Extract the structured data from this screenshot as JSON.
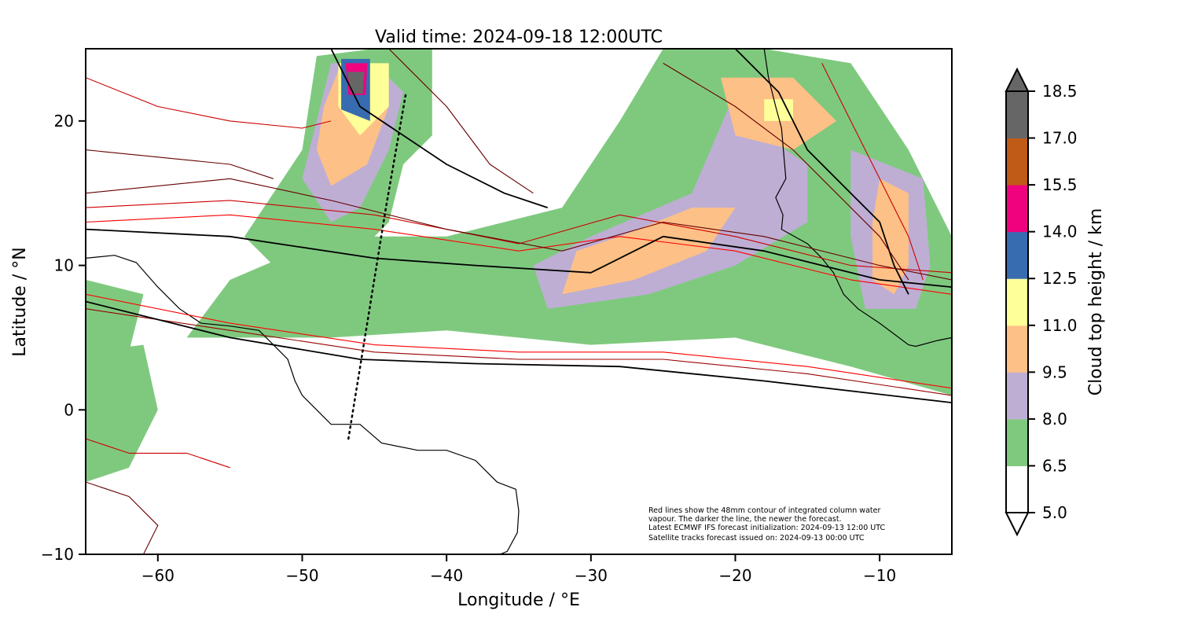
{
  "figure": {
    "title": "Valid time: 2024-09-18 12:00UTC",
    "xlabel": "Longitude / °E",
    "ylabel": "Latitude / °N",
    "xticks": [
      "−60",
      "−50",
      "−40",
      "−30",
      "−20",
      "−10"
    ],
    "yticks": [
      "20",
      "10",
      "0",
      "−10"
    ],
    "note_lines": [
      "Red lines show the 48mm contour of integrated column water",
      "vapour. The darker the line, the newer the forecast.",
      "Latest ECMWF IFS forecast initialization: 2024-09-13 12:00 UTC",
      "Satellite tracks forecast issued on: 2024-09-13 00:00 UTC"
    ]
  },
  "colorbar": {
    "label": "Cloud top height / km",
    "tick_labels": [
      "18.5",
      "17.0",
      "15.5",
      "14.0",
      "12.5",
      "11.0",
      "9.5",
      "8.0",
      "6.5",
      "5.0"
    ],
    "bins": [
      {
        "from": 5.0,
        "to": 6.5,
        "color": "#ffffff"
      },
      {
        "from": 6.5,
        "to": 8.0,
        "color": "#7fc97f"
      },
      {
        "from": 8.0,
        "to": 9.5,
        "color": "#beaed4"
      },
      {
        "from": 9.5,
        "to": 11.0,
        "color": "#fdc086"
      },
      {
        "from": 11.0,
        "to": 12.5,
        "color": "#ffff99"
      },
      {
        "from": 12.5,
        "to": 14.0,
        "color": "#386cb0"
      },
      {
        "from": 14.0,
        "to": 15.5,
        "color": "#f0027f"
      },
      {
        "from": 15.5,
        "to": 17.0,
        "color": "#bf5b17"
      },
      {
        "from": 17.0,
        "to": 18.5,
        "color": "#666666"
      }
    ],
    "extend": "both"
  },
  "chart_data": {
    "type": "map",
    "xlim": [
      -65,
      -5
    ],
    "ylim": [
      -10,
      25
    ],
    "satellite_track": [
      [
        -46.8,
        -2
      ],
      [
        -45.5,
        6
      ],
      [
        -44.2,
        14
      ],
      [
        -42.8,
        22
      ]
    ],
    "cloud_regions": [
      {
        "level": 6.5,
        "points": [
          [
            -49,
            24.5
          ],
          [
            -45,
            25
          ],
          [
            -41,
            25
          ],
          [
            -41,
            19
          ],
          [
            -43,
            17
          ],
          [
            -44,
            13
          ],
          [
            -47,
            10
          ],
          [
            -51,
            9
          ],
          [
            -54,
            12
          ],
          [
            -52,
            15
          ],
          [
            -50,
            18
          ]
        ]
      },
      {
        "level": 8.0,
        "points": [
          [
            -48,
            24
          ],
          [
            -45,
            24
          ],
          [
            -43,
            22
          ],
          [
            -44,
            18
          ],
          [
            -46,
            14
          ],
          [
            -48,
            13
          ],
          [
            -50,
            16
          ],
          [
            -49,
            20
          ]
        ]
      },
      {
        "level": 9.5,
        "points": [
          [
            -47.5,
            23.5
          ],
          [
            -45,
            23.5
          ],
          [
            -44,
            21
          ],
          [
            -45.5,
            17
          ],
          [
            -48,
            15.5
          ],
          [
            -49,
            18
          ],
          [
            -48.5,
            21
          ]
        ]
      },
      {
        "level": 11.0,
        "points": [
          [
            -47.5,
            24
          ],
          [
            -44,
            24
          ],
          [
            -44,
            21
          ],
          [
            -46,
            19
          ],
          [
            -47.5,
            21
          ]
        ]
      },
      {
        "level": 12.5,
        "points": [
          [
            -47.3,
            24.3
          ],
          [
            -45.3,
            24.3
          ],
          [
            -45.3,
            20
          ],
          [
            -47.3,
            20.8
          ]
        ]
      },
      {
        "level": 14.0,
        "points": [
          [
            -47,
            24
          ],
          [
            -45.5,
            24
          ],
          [
            -45.6,
            21.8
          ],
          [
            -46.8,
            21.8
          ]
        ]
      },
      {
        "level": 17.0,
        "points": [
          [
            -46.9,
            23.4
          ],
          [
            -45.7,
            23.4
          ],
          [
            -45.8,
            21.9
          ],
          [
            -46.6,
            21.9
          ]
        ]
      },
      {
        "level": 6.5,
        "points": [
          [
            -58,
            5
          ],
          [
            -48,
            5
          ],
          [
            -40,
            5.5
          ],
          [
            -30,
            4.5
          ],
          [
            -20,
            5
          ],
          [
            -12,
            3
          ],
          [
            -5,
            1
          ],
          [
            -5,
            12
          ],
          [
            -8,
            18
          ],
          [
            -12,
            24
          ],
          [
            -18,
            25
          ],
          [
            -25,
            25
          ],
          [
            -28,
            20
          ],
          [
            -32,
            14
          ],
          [
            -40,
            12
          ],
          [
            -48,
            12
          ],
          [
            -55,
            9
          ]
        ]
      },
      {
        "level": 8.0,
        "points": [
          [
            -33,
            7
          ],
          [
            -26,
            8
          ],
          [
            -20,
            10
          ],
          [
            -15,
            13
          ],
          [
            -15,
            17
          ],
          [
            -18,
            19
          ],
          [
            -20,
            22
          ],
          [
            -23,
            15
          ],
          [
            -30,
            12
          ],
          [
            -34,
            10
          ]
        ]
      },
      {
        "level": 9.5,
        "points": [
          [
            -32,
            8
          ],
          [
            -27,
            9
          ],
          [
            -22,
            11
          ],
          [
            -20,
            14
          ],
          [
            -23,
            14
          ],
          [
            -28,
            12
          ],
          [
            -31,
            11
          ]
        ]
      },
      {
        "level": 9.5,
        "points": [
          [
            -21,
            23
          ],
          [
            -16,
            23
          ],
          [
            -13,
            20
          ],
          [
            -16,
            18
          ],
          [
            -20,
            19
          ]
        ]
      },
      {
        "level": 11.0,
        "points": [
          [
            -18,
            21.5
          ],
          [
            -16,
            21.5
          ],
          [
            -16,
            20
          ],
          [
            -18,
            20
          ]
        ]
      },
      {
        "level": 8.0,
        "points": [
          [
            -12,
            18
          ],
          [
            -7,
            16
          ],
          [
            -6.5,
            10
          ],
          [
            -7.5,
            7
          ],
          [
            -11,
            7
          ],
          [
            -12,
            12
          ]
        ]
      },
      {
        "level": 9.5,
        "points": [
          [
            -10,
            16
          ],
          [
            -8,
            15
          ],
          [
            -8,
            10
          ],
          [
            -9,
            8
          ],
          [
            -10.5,
            9
          ],
          [
            -10.5,
            13
          ]
        ]
      },
      {
        "level": 6.5,
        "points": [
          [
            -65,
            9
          ],
          [
            -61,
            8
          ],
          [
            -62,
            4
          ],
          [
            -65,
            4
          ]
        ]
      },
      {
        "level": 6.5,
        "points": [
          [
            -65,
            4
          ],
          [
            -61,
            4.5
          ],
          [
            -60,
            0
          ],
          [
            -62,
            -4
          ],
          [
            -65,
            -5
          ]
        ]
      }
    ],
    "iwv_contours": [
      {
        "color": "#ff0000",
        "points": [
          [
            -65,
            13
          ],
          [
            -55,
            13.5
          ],
          [
            -45,
            12.5
          ],
          [
            -35,
            11
          ],
          [
            -28,
            12
          ],
          [
            -20,
            11
          ],
          [
            -12,
            9
          ],
          [
            -5,
            8
          ]
        ]
      },
      {
        "color": "#ff0000",
        "points": [
          [
            -65,
            8
          ],
          [
            -55,
            6
          ],
          [
            -45,
            4.5
          ],
          [
            -35,
            4
          ],
          [
            -25,
            4
          ],
          [
            -15,
            3
          ],
          [
            -5,
            1.5
          ]
        ]
      },
      {
        "color": "#cc0000",
        "points": [
          [
            -65,
            14
          ],
          [
            -55,
            14.5
          ],
          [
            -45,
            13.5
          ],
          [
            -35,
            11.5
          ],
          [
            -28,
            13.5
          ],
          [
            -20,
            12
          ],
          [
            -12,
            10
          ],
          [
            -5,
            9.5
          ]
        ]
      },
      {
        "color": "#990000",
        "points": [
          [
            -65,
            7
          ],
          [
            -55,
            5.5
          ],
          [
            -45,
            4
          ],
          [
            -35,
            3.5
          ],
          [
            -25,
            3.5
          ],
          [
            -15,
            2.5
          ],
          [
            -5,
            1
          ]
        ]
      },
      {
        "color": "#660000",
        "points": [
          [
            -65,
            15
          ],
          [
            -55,
            16
          ],
          [
            -48,
            14.5
          ],
          [
            -40,
            12.5
          ],
          [
            -32,
            11
          ],
          [
            -25,
            13
          ],
          [
            -18,
            12
          ],
          [
            -10,
            10
          ],
          [
            -5,
            9
          ]
        ]
      },
      {
        "color": "#000000",
        "points": [
          [
            -65,
            12.5
          ],
          [
            -55,
            12
          ],
          [
            -45,
            10.5
          ],
          [
            -38,
            10
          ],
          [
            -30,
            9.5
          ],
          [
            -25,
            12
          ],
          [
            -18,
            11
          ],
          [
            -10,
            9
          ],
          [
            -5,
            8.5
          ]
        ]
      },
      {
        "color": "#000000",
        "points": [
          [
            -65,
            7.5
          ],
          [
            -55,
            5
          ],
          [
            -46,
            3.5
          ],
          [
            -38,
            3.2
          ],
          [
            -28,
            3
          ],
          [
            -18,
            2
          ],
          [
            -5,
            0.5
          ]
        ]
      },
      {
        "color": "#000000",
        "points": [
          [
            -48,
            25
          ],
          [
            -46,
            21
          ],
          [
            -40,
            17
          ],
          [
            -36,
            15
          ],
          [
            -33,
            14
          ]
        ]
      },
      {
        "color": "#660000",
        "points": [
          [
            -44,
            25
          ],
          [
            -40,
            21
          ],
          [
            -37,
            17
          ],
          [
            -34,
            15
          ]
        ]
      },
      {
        "color": "#000000",
        "points": [
          [
            -20,
            25
          ],
          [
            -17,
            22
          ],
          [
            -15,
            18
          ],
          [
            -12,
            15
          ],
          [
            -10,
            13
          ],
          [
            -9,
            10
          ],
          [
            -8,
            8
          ]
        ]
      },
      {
        "color": "#660000",
        "points": [
          [
            -25,
            24
          ],
          [
            -20,
            21
          ],
          [
            -16,
            18
          ],
          [
            -13,
            15
          ],
          [
            -10,
            12
          ],
          [
            -8,
            9
          ]
        ]
      },
      {
        "color": "#cc0000",
        "points": [
          [
            -14,
            24
          ],
          [
            -12,
            20
          ],
          [
            -10,
            16
          ],
          [
            -8,
            12
          ],
          [
            -7,
            9
          ]
        ]
      },
      {
        "color": "#cc0000",
        "points": [
          [
            -65,
            -2
          ],
          [
            -62,
            -3
          ],
          [
            -58,
            -3
          ],
          [
            -55,
            -4
          ]
        ]
      },
      {
        "color": "#660000",
        "points": [
          [
            -65,
            -5
          ],
          [
            -62,
            -6
          ],
          [
            -60,
            -8
          ],
          [
            -61,
            -10
          ]
        ]
      },
      {
        "color": "#cc0000",
        "points": [
          [
            -65,
            23
          ],
          [
            -60,
            21
          ],
          [
            -55,
            20
          ],
          [
            -50,
            19.5
          ],
          [
            -48,
            20
          ]
        ]
      },
      {
        "color": "#660000",
        "points": [
          [
            -65,
            18
          ],
          [
            -60,
            17.5
          ],
          [
            -55,
            17
          ],
          [
            -52,
            16
          ]
        ]
      }
    ],
    "coastlines": [
      [
        [
          -65,
          10.5
        ],
        [
          -63,
          10.7
        ],
        [
          -61.5,
          10.2
        ],
        [
          -60,
          8.5
        ],
        [
          -58.5,
          7
        ],
        [
          -57,
          6
        ],
        [
          -55,
          5.8
        ],
        [
          -53,
          5.5
        ],
        [
          -52,
          4.5
        ],
        [
          -51,
          3.5
        ],
        [
          -50.5,
          2
        ],
        [
          -50,
          1
        ],
        [
          -49,
          0
        ],
        [
          -48,
          -1
        ],
        [
          -46,
          -1
        ],
        [
          -44.5,
          -2.3
        ],
        [
          -42,
          -2.8
        ],
        [
          -40,
          -2.8
        ],
        [
          -38,
          -3.5
        ],
        [
          -36.5,
          -5
        ],
        [
          -35.2,
          -5.5
        ],
        [
          -35,
          -7
        ],
        [
          -35.1,
          -8.5
        ],
        [
          -35.8,
          -9.8
        ],
        [
          -36.3,
          -10
        ]
      ],
      [
        [
          -17.2,
          21
        ],
        [
          -16.8,
          19.5
        ],
        [
          -16.5,
          16
        ],
        [
          -17.2,
          14.7
        ],
        [
          -16.7,
          13.5
        ],
        [
          -16.8,
          12.5
        ],
        [
          -15,
          11.5
        ],
        [
          -14,
          10.5
        ],
        [
          -13.2,
          9.5
        ],
        [
          -12.5,
          8
        ],
        [
          -11.5,
          7
        ],
        [
          -10,
          6
        ],
        [
          -8,
          4.5
        ],
        [
          -7.5,
          4.4
        ],
        [
          -6,
          4.8
        ],
        [
          -5,
          5
        ]
      ],
      [
        [
          -18,
          25
        ],
        [
          -17.7,
          23
        ],
        [
          -17.2,
          21
        ]
      ]
    ]
  }
}
